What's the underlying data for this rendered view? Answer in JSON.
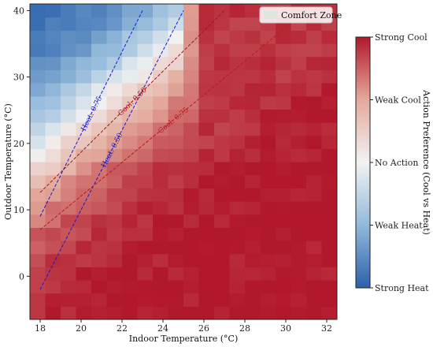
{
  "chart_data": {
    "type": "heatmap",
    "title": "",
    "xlabel": "Indoor Temperature (°C)",
    "ylabel": "Outdoor Temperature (°C)",
    "xlim": [
      17.5,
      32.5
    ],
    "ylim": [
      -6.5,
      41
    ],
    "x_ticks": [
      18,
      20,
      22,
      24,
      26,
      28,
      30,
      32
    ],
    "y_ticks": [
      0,
      10,
      20,
      30,
      40
    ],
    "grid": false,
    "legend_position": "top-right",
    "legend": [
      {
        "label": "Comfort Zone",
        "color": "#dfe6dc"
      }
    ],
    "colorbar": {
      "label": "Action Preference (Cool vs Heat)",
      "ticks": [
        "Strong Cool",
        "Weak Cool",
        "No Action",
        "Weak Heat",
        "Strong Heat"
      ],
      "colors": [
        "#b2182b",
        "#e3a99b",
        "#f2f2f2",
        "#92b9da",
        "#2b61ab"
      ]
    },
    "contours": [
      {
        "label": "Heat: 0.75",
        "color": "#1a1acc",
        "points": [
          [
            18,
            9
          ],
          [
            23,
            40
          ]
        ]
      },
      {
        "label": "Heat: 0.50",
        "color": "#1a1acc",
        "points": [
          [
            18,
            -2
          ],
          [
            25,
            40
          ]
        ]
      },
      {
        "label": "Cool: 0.50",
        "color": "#a01818",
        "points": [
          [
            18,
            12.6
          ],
          [
            27,
            40
          ]
        ]
      },
      {
        "label": "Cool: 0.75",
        "color": "#b81c1c",
        "points": [
          [
            18,
            7
          ],
          [
            31,
            40
          ]
        ]
      }
    ]
  }
}
